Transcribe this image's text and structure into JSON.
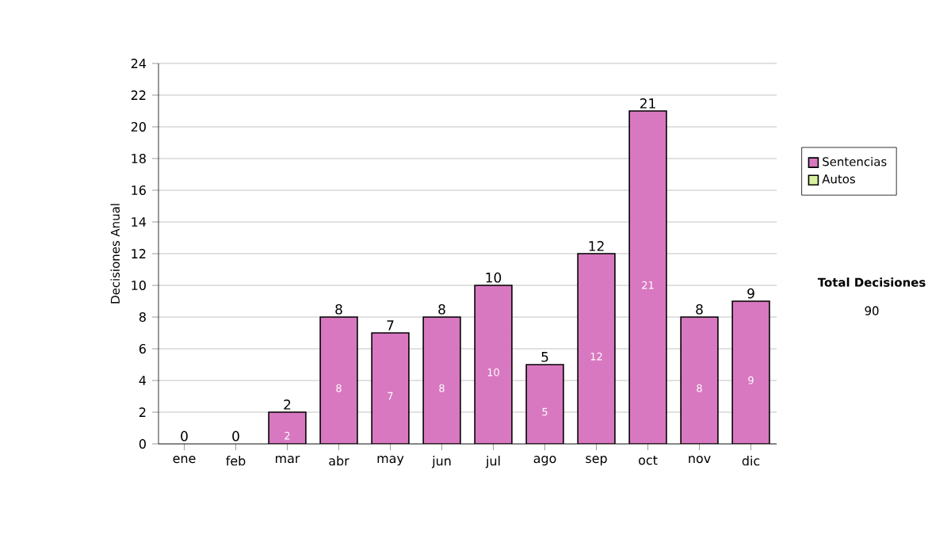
{
  "chart_data": {
    "type": "bar",
    "stacked": true,
    "ylabel": "Decisiones Anual",
    "categories": [
      "ene",
      "feb",
      "mar",
      "abr",
      "may",
      "jun",
      "jul",
      "ago",
      "sep",
      "oct",
      "nov",
      "dic"
    ],
    "series": [
      {
        "name": "Sentencias",
        "color": "#d878c0",
        "values": [
          0,
          0,
          2,
          8,
          7,
          8,
          10,
          5,
          12,
          21,
          8,
          9
        ],
        "value_labels": [
          null,
          null,
          "2",
          "8",
          "7",
          "8",
          "10",
          "5",
          "12",
          "21",
          "8",
          "9"
        ]
      },
      {
        "name": "Autos",
        "color": "#d8f0a0",
        "values": [
          0,
          0,
          0,
          0,
          0,
          0,
          0,
          0,
          0,
          0,
          0,
          0
        ]
      }
    ],
    "totals": [
      "0",
      "0",
      "2",
      "8",
      "7",
      "8",
      "10",
      "5",
      "12",
      "21",
      "8",
      "9"
    ],
    "ylim": [
      0,
      24
    ],
    "yticks": [
      0,
      2,
      4,
      6,
      8,
      10,
      12,
      14,
      16,
      18,
      20,
      22,
      24
    ],
    "grid": "y",
    "legend": "right",
    "annotations": [
      "Total Decisiones",
      "90"
    ]
  }
}
